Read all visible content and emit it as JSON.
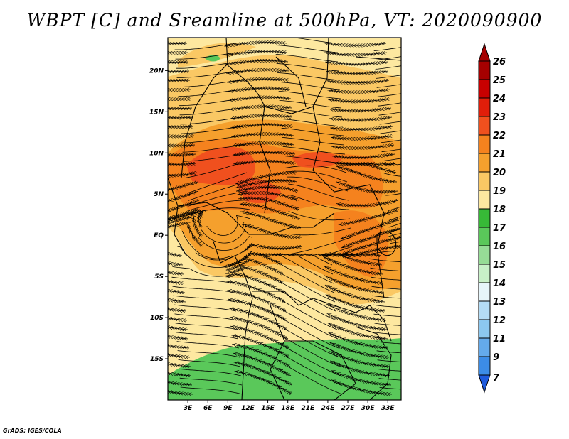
{
  "title": "WBPT [C] and Sreamline at 500hPa, VT: 2020090900",
  "footer": "GrADS: IGES/COLA",
  "map": {
    "lon_range": [
      0,
      35
    ],
    "lat_range": [
      -20,
      24
    ],
    "lat_ticks": [
      {
        "value": 20,
        "label": "20N"
      },
      {
        "value": 15,
        "label": "15N"
      },
      {
        "value": 10,
        "label": "10N"
      },
      {
        "value": 5,
        "label": "5N"
      },
      {
        "value": 0,
        "label": "EQ"
      },
      {
        "value": -5,
        "label": "5S"
      },
      {
        "value": -10,
        "label": "10S"
      },
      {
        "value": -15,
        "label": "15S"
      }
    ],
    "lon_ticks": [
      {
        "value": 3,
        "label": "3E"
      },
      {
        "value": 6,
        "label": "6E"
      },
      {
        "value": 9,
        "label": "9E"
      },
      {
        "value": 12,
        "label": "12E"
      },
      {
        "value": 15,
        "label": "15E"
      },
      {
        "value": 18,
        "label": "18E"
      },
      {
        "value": 21,
        "label": "21E"
      },
      {
        "value": 24,
        "label": "24E"
      },
      {
        "value": 27,
        "label": "27E"
      },
      {
        "value": 30,
        "label": "30E"
      },
      {
        "value": 33,
        "label": "33E"
      }
    ]
  },
  "colorbar": {
    "levels": [
      {
        "label": "26",
        "color": "#a50000"
      },
      {
        "label": "25",
        "color": "#c80000"
      },
      {
        "label": "24",
        "color": "#e01e0a"
      },
      {
        "label": "23",
        "color": "#f0501e"
      },
      {
        "label": "22",
        "color": "#f5821e"
      },
      {
        "label": "21",
        "color": "#f5a02d"
      },
      {
        "label": "20",
        "color": "#fac864"
      },
      {
        "label": "19",
        "color": "#fde8a0"
      },
      {
        "label": "18",
        "color": "#37b937"
      },
      {
        "label": "17",
        "color": "#5ac85a"
      },
      {
        "label": "16",
        "color": "#96dc96"
      },
      {
        "label": "15",
        "color": "#c8f0c8"
      },
      {
        "label": "14",
        "color": "#e6f5fa"
      },
      {
        "label": "13",
        "color": "#b4dcf5"
      },
      {
        "label": "12",
        "color": "#8cc8f0"
      },
      {
        "label": "11",
        "color": "#64aaeb"
      },
      {
        "label": "9",
        "color": "#3c8ce6"
      },
      {
        "label": "7",
        "color": "#1e6edc"
      }
    ],
    "low_color": "#1e5adc"
  },
  "fields": {
    "background_color": "#fde8a0",
    "regions": [
      {
        "level": "20",
        "color": "#fac864"
      },
      {
        "level": "21",
        "color": "#f5a02d"
      },
      {
        "level": "22",
        "color": "#f5821e"
      },
      {
        "level": "23",
        "color": "#f0501e"
      },
      {
        "level": "17",
        "color": "#5ac85a"
      }
    ]
  }
}
